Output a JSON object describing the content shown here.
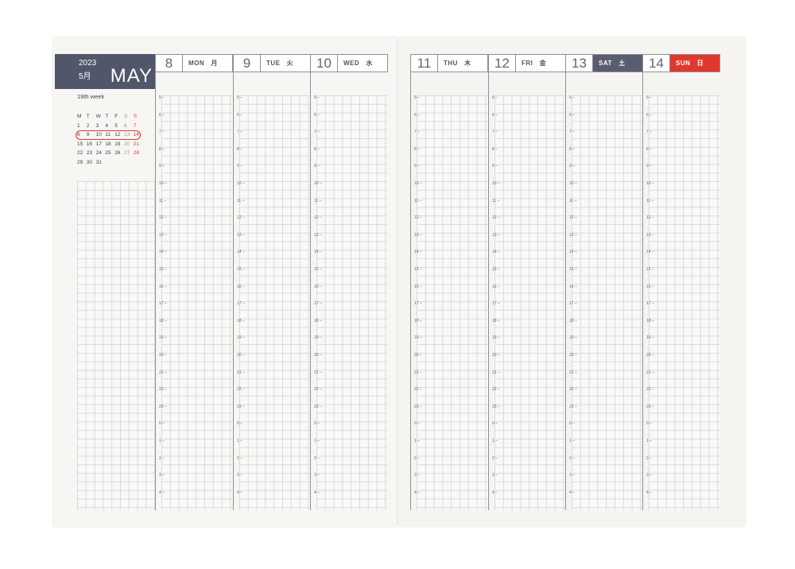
{
  "month": {
    "year": "2023",
    "month_jp": "5月",
    "month_name": "MAY",
    "week": "19th week"
  },
  "mini_calendar": {
    "headers": [
      "M",
      "T",
      "W",
      "T",
      "F",
      "S",
      "S"
    ],
    "weeks": [
      [
        "1",
        "2",
        "3",
        "4",
        "5",
        "6",
        "7"
      ],
      [
        "8",
        "9",
        "10",
        "11",
        "12",
        "13",
        "14"
      ],
      [
        "15",
        "16",
        "17",
        "18",
        "19",
        "20",
        "21"
      ],
      [
        "22",
        "23",
        "24",
        "25",
        "26",
        "27",
        "28"
      ],
      [
        "29",
        "30",
        "31"
      ]
    ],
    "highlighted_week": 1
  },
  "days": [
    {
      "num": "8",
      "name": "MON",
      "jp": "月"
    },
    {
      "num": "9",
      "name": "TUE",
      "jp": "火"
    },
    {
      "num": "10",
      "name": "WED",
      "jp": "水"
    },
    {
      "num": "11",
      "name": "THU",
      "jp": "木"
    },
    {
      "num": "12",
      "name": "FRI",
      "jp": "金"
    },
    {
      "num": "13",
      "name": "SAT",
      "jp": "土"
    },
    {
      "num": "14",
      "name": "SUN",
      "jp": "日"
    }
  ],
  "hours": [
    "5",
    "6",
    "7",
    "8",
    "9",
    "10",
    "11",
    "12",
    "13",
    "14",
    "15",
    "16",
    "17",
    "18",
    "19",
    "20",
    "21",
    "22",
    "23",
    "0",
    "1",
    "2",
    "3",
    "4"
  ],
  "colors": {
    "header_navy": "#51566b",
    "saturday": "#5a5c70",
    "sunday": "#e0382e",
    "grid": "#d8d9de"
  }
}
